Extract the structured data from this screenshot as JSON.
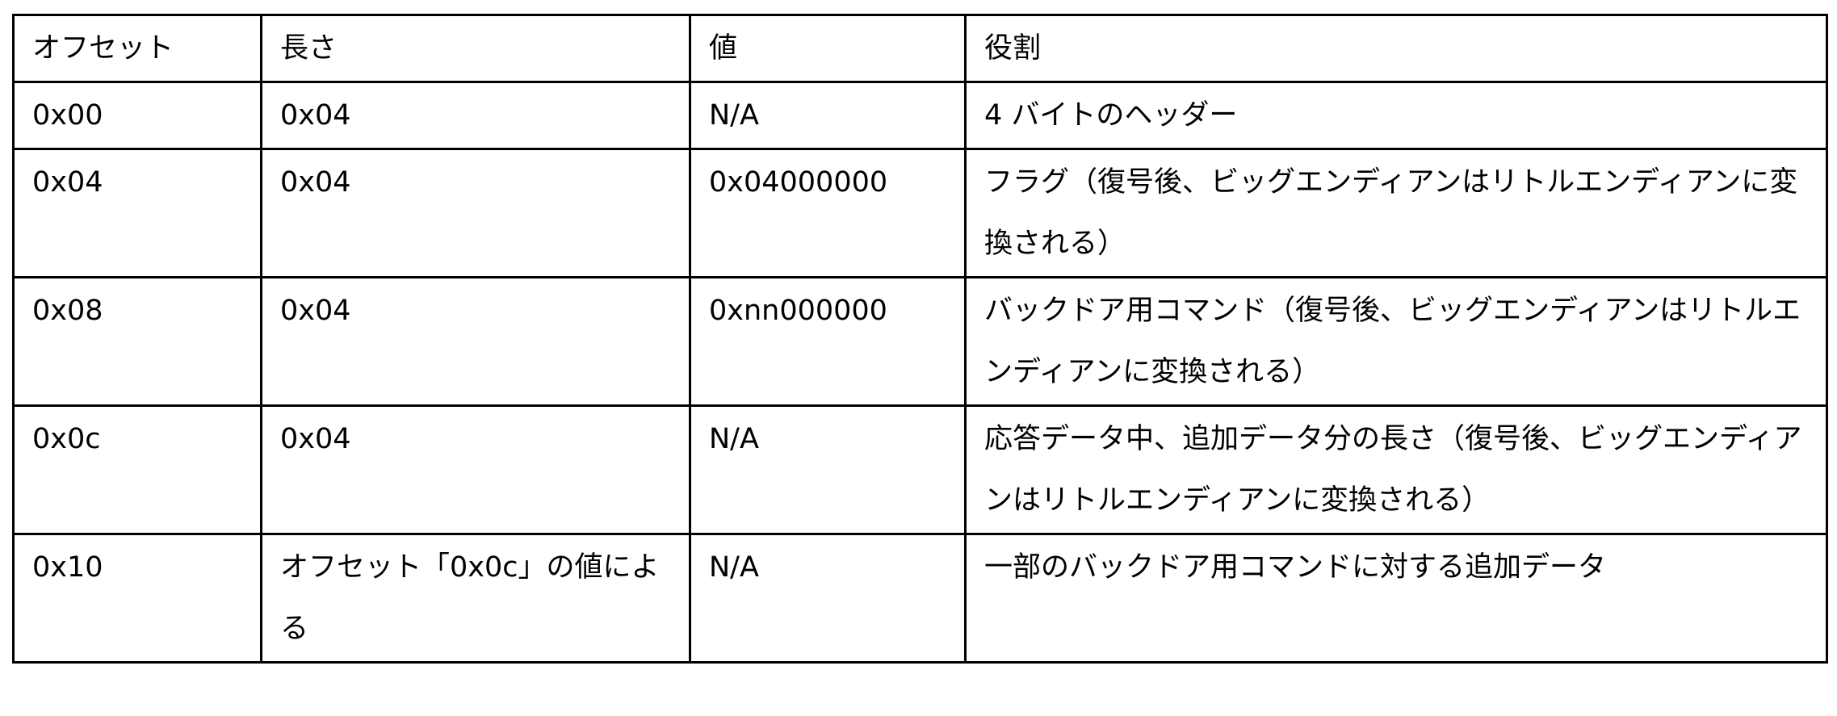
{
  "table": {
    "headers": [
      "オフセット",
      "長さ",
      "値",
      "役割"
    ],
    "rows": [
      [
        "0x00",
        "0x04",
        "N/A",
        "4 バイトのヘッダー"
      ],
      [
        "0x04",
        "0x04",
        "0x04000000",
        "フラグ（復号後、ビッグエンディアンはリトルエンディアンに変換される）"
      ],
      [
        "0x08",
        "0x04",
        "0xnn000000",
        "バックドア用コマンド（復号後、ビッグエンディアンはリトルエンディアンに変換される）"
      ],
      [
        "0x0c",
        "0x04",
        "N/A",
        "応答データ中、追加データ分の長さ（復号後、ビッグエンディアンはリトルエンディアンに変換される）"
      ],
      [
        "0x10",
        "オフセット「0x0c」の値による",
        "N/A",
        "一部のバックドア用コマンドに対する追加データ"
      ]
    ]
  }
}
